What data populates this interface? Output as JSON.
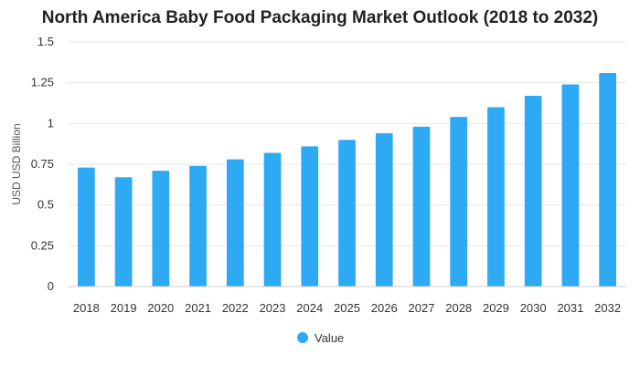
{
  "chart_data": {
    "type": "bar",
    "title": "North America Baby Food Packaging Market Outlook (2018 to 2032)",
    "xlabel": "",
    "ylabel": "USD USD Billion",
    "categories": [
      "2018",
      "2019",
      "2020",
      "2021",
      "2022",
      "2023",
      "2024",
      "2025",
      "2026",
      "2027",
      "2028",
      "2029",
      "2030",
      "2031",
      "2032"
    ],
    "series": [
      {
        "name": "Value",
        "color": "#2eaaf5",
        "values": [
          0.73,
          0.67,
          0.71,
          0.74,
          0.78,
          0.82,
          0.86,
          0.9,
          0.94,
          0.98,
          1.04,
          1.1,
          1.17,
          1.24,
          1.31
        ]
      }
    ],
    "ylim": [
      0,
      1.5
    ],
    "yticks": [
      "0",
      "0.25",
      "0.5",
      "0.75",
      "1",
      "1.25",
      "1.5"
    ],
    "ytick_values": [
      0,
      0.25,
      0.5,
      0.75,
      1,
      1.25,
      1.5
    ],
    "grid": true,
    "legend_position": "bottom-center"
  }
}
